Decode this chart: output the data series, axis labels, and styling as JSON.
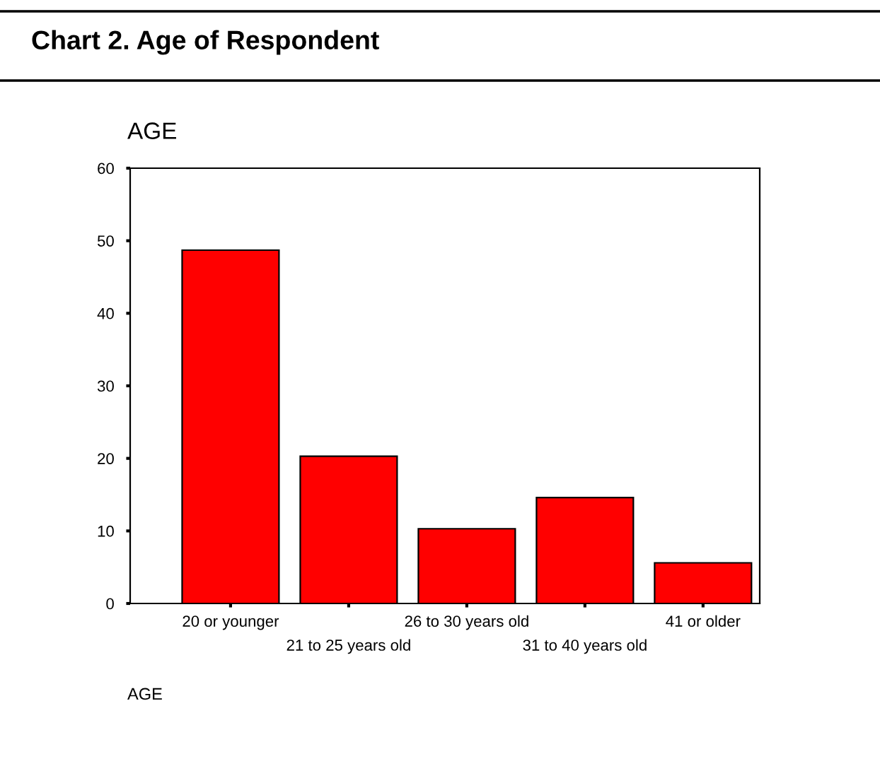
{
  "chart_data": {
    "type": "bar",
    "title": "Chart 2. Age of Respondent",
    "subtitle": "AGE",
    "xlabel": "AGE",
    "categories": [
      "20 or younger",
      "21 to 25 years old",
      "26 to 30 years old",
      "31 to 40 years old",
      "41 or older"
    ],
    "values": [
      48.7,
      20.3,
      10.3,
      14.6,
      5.6
    ],
    "color": "#ff0000",
    "ylim": [
      0,
      60
    ],
    "yticks": [
      0,
      10,
      20,
      30,
      40,
      50,
      60
    ],
    "grid": false,
    "legend": false
  }
}
